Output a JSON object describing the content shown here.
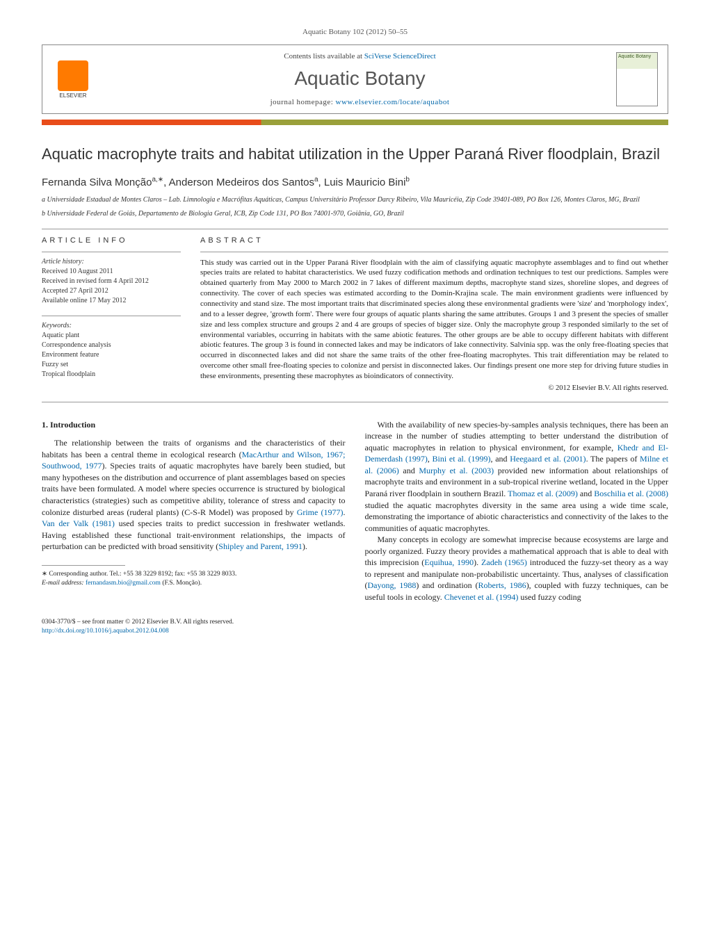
{
  "header": {
    "citation": "Aquatic Botany 102 (2012) 50–55",
    "contents_prefix": "Contents lists available at ",
    "contents_link": "SciVerse ScienceDirect",
    "journal_title": "Aquatic Botany",
    "homepage_prefix": "journal homepage: ",
    "homepage_url": "www.elsevier.com/locate/aquabot",
    "publisher_name": "ELSEVIER",
    "cover_text": "Aquatic Botany"
  },
  "article": {
    "title": "Aquatic macrophyte traits and habitat utilization in the Upper Paraná River floodplain, Brazil",
    "authors_html": "Fernanda Silva Monção",
    "author1": "Fernanda Silva Monção",
    "author1_sup": "a,∗",
    "author2": "Anderson Medeiros dos Santos",
    "author2_sup": "a",
    "author3": "Luis Mauricio Bini",
    "author3_sup": "b",
    "affiliations": [
      "a Universidade Estadual de Montes Claros – Lab. Limnologia e Macrófitas Aquáticas, Campus Universitário Professor Darcy Ribeiro, Vila Mauricéia, Zip Code 39401-089, PO Box 126, Montes Claros, MG, Brazil",
      "b Universidade Federal de Goiás, Departamento de Biologia Geral, ICB, Zip Code 131, PO Box 74001-970, Goiânia, GO, Brazil"
    ]
  },
  "info": {
    "heading": "ARTICLE INFO",
    "history_label": "Article history:",
    "history": [
      "Received 10 August 2011",
      "Received in revised form 4 April 2012",
      "Accepted 27 April 2012",
      "Available online 17 May 2012"
    ],
    "keywords_label": "Keywords:",
    "keywords": [
      "Aquatic plant",
      "Correspondence analysis",
      "Environment feature",
      "Fuzzy set",
      "Tropical floodplain"
    ]
  },
  "abstract": {
    "heading": "ABSTRACT",
    "text": "This study was carried out in the Upper Paraná River floodplain with the aim of classifying aquatic macrophyte assemblages and to find out whether species traits are related to habitat characteristics. We used fuzzy codification methods and ordination techniques to test our predictions. Samples were obtained quarterly from May 2000 to March 2002 in 7 lakes of different maximum depths, macrophyte stand sizes, shoreline slopes, and degrees of connectivity. The cover of each species was estimated according to the Domin-Krajina scale. The main environment gradients were influenced by connectivity and stand size. The most important traits that discriminated species along these environmental gradients were 'size' and 'morphology index', and to a lesser degree, 'growth form'. There were four groups of aquatic plants sharing the same attributes. Groups 1 and 3 present the species of smaller size and less complex structure and groups 2 and 4 are groups of species of bigger size. Only the macrophyte group 3 responded similarly to the set of environmental variables, occurring in habitats with the same abiotic features. The other groups are be able to occupy different habitats with different abiotic features. The group 3 is found in connected lakes and may be indicators of lake connectivity. Salvinia spp. was the only free-floating species that occurred in disconnected lakes and did not share the same traits of the other free-floating macrophytes. This trait differentiation may be related to overcome other small free-floating species to colonize and persist in disconnected lakes. Our findings present one more step for driving future studies in these environments, presenting these macrophytes as bioindicators of connectivity.",
    "copyright": "© 2012 Elsevier B.V. All rights reserved."
  },
  "body": {
    "section_heading": "1. Introduction",
    "left_paragraphs": [
      "The relationship between the traits of organisms and the characteristics of their habitats has been a central theme in ecological research (MacArthur and Wilson, 1967; Southwood, 1977). Species traits of aquatic macrophytes have barely been studied, but many hypotheses on the distribution and occurrence of plant assemblages based on species traits have been formulated. A model where species occurrence is structured by biological characteristics (strategies) such as competitive ability, tolerance of stress and capacity to colonize disturbed areas (ruderal plants) (C-S-R Model) was proposed by Grime (1977). Van der Valk (1981) used species traits to predict succession in freshwater wetlands. Having established these functional trait-environment relationships, the impacts of perturbation can be predicted with broad sensitivity (Shipley and Parent, 1991)."
    ],
    "right_paragraphs": [
      "With the availability of new species-by-samples analysis techniques, there has been an increase in the number of studies attempting to better understand the distribution of aquatic macrophytes in relation to physical environment, for example, Khedr and El-Demerdash (1997), Bini et al. (1999), and Heegaard et al. (2001). The papers of Milne et al. (2006) and Murphy et al. (2003) provided new information about relationships of macrophyte traits and environment in a sub-tropical riverine wetland, located in the Upper Paraná river floodplain in southern Brazil. Thomaz et al. (2009) and Boschilia et al. (2008) studied the aquatic macrophytes diversity in the same area using a wide time scale, demonstrating the importance of abiotic characteristics and connectivity of the lakes to the communities of aquatic macrophytes.",
      "Many concepts in ecology are somewhat imprecise because ecosystems are large and poorly organized. Fuzzy theory provides a mathematical approach that is able to deal with this imprecision (Equihua, 1990). Zadeh (1965) introduced the fuzzy-set theory as a way to represent and manipulate non-probabilistic uncertainty. Thus, analyses of classification (Dayong, 1988) and ordination (Roberts, 1986), coupled with fuzzy techniques, can be useful tools in ecology. Chevenet et al. (1994) used fuzzy coding"
    ]
  },
  "footnote": {
    "corresponding": "∗ Corresponding author. Tel.: +55 38 3229 8192; fax: +55 38 3229 8033.",
    "email_label": "E-mail address: ",
    "email": "fernandasm.bio@gmail.com",
    "email_suffix": " (F.S. Monção)."
  },
  "footer": {
    "line1": "0304-3770/$ – see front matter © 2012 Elsevier B.V. All rights reserved.",
    "doi": "http://dx.doi.org/10.1016/j.aquabot.2012.04.008"
  },
  "refs_left": [
    "MacArthur and Wilson, 1967; Southwood, 1977",
    "Grime (1977)",
    "Van der Valk (1981)",
    "Shipley and Parent, 1991"
  ],
  "refs_right": [
    "Khedr and El-Demerdash (1997)",
    "Bini et al. (1999)",
    "Heegaard et al. (2001)",
    "Milne et al. (2006)",
    "Murphy et al. (2003)",
    "Thomaz et al. (2009)",
    "Boschilia et al. (2008)",
    "Equihua, 1990",
    "Zadeh (1965)",
    "Dayong, 1988",
    "Roberts, 1986",
    "Chevenet et al. (1994)"
  ],
  "colors": {
    "bar_left": "#e84c1a",
    "bar_right": "#9aa03a",
    "link": "#0066aa",
    "text": "#222222"
  }
}
